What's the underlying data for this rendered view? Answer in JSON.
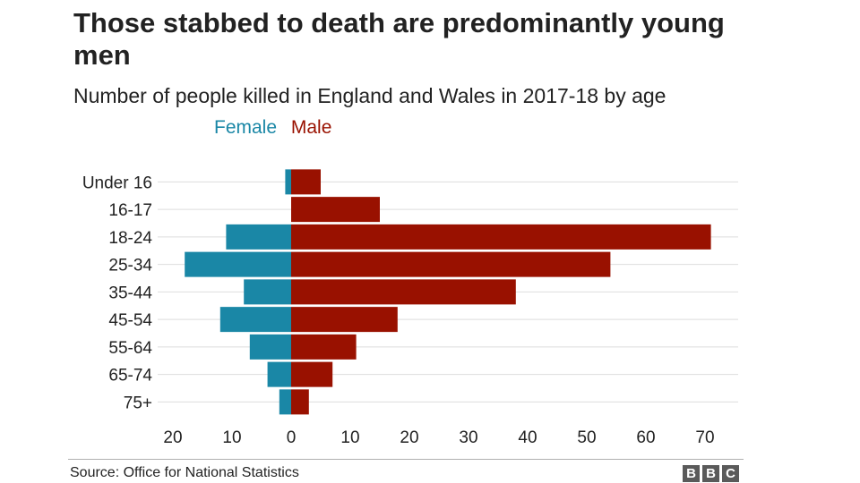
{
  "header": {
    "title": "Those stabbed to death are predominantly young men",
    "subtitle": "Number of people killed in England and Wales in 2017-18 by age"
  },
  "legend": {
    "female_label": "Female",
    "male_label": "Male"
  },
  "colors": {
    "female": "#1a87a6",
    "male": "#991100",
    "grid": "#dddddd",
    "text": "#222222"
  },
  "chart_data": {
    "type": "bar",
    "orientation": "horizontal",
    "layout": "population-pyramid",
    "title": "Those stabbed to death are predominantly young men",
    "subtitle": "Number of people killed in England and Wales in 2017-18 by age",
    "categories": [
      "Under 16",
      "16-17",
      "18-24",
      "25-34",
      "35-44",
      "45-54",
      "55-64",
      "65-74",
      "75+"
    ],
    "series": [
      {
        "name": "Female",
        "values": [
          1,
          0,
          11,
          18,
          8,
          12,
          7,
          4,
          2
        ]
      },
      {
        "name": "Male",
        "values": [
          5,
          15,
          71,
          54,
          38,
          18,
          11,
          7,
          3
        ]
      }
    ],
    "xlim": [
      -20,
      75
    ],
    "xticks": [
      -20,
      -10,
      0,
      10,
      20,
      30,
      40,
      50,
      60,
      70
    ],
    "xtick_labels": [
      "20",
      "10",
      "0",
      "10",
      "20",
      "30",
      "40",
      "50",
      "60",
      "70"
    ],
    "grid": true,
    "legend_position": "top-left"
  },
  "footer": {
    "source": "Source: Office for National Statistics",
    "logo_letters": [
      "B",
      "B",
      "C"
    ]
  }
}
